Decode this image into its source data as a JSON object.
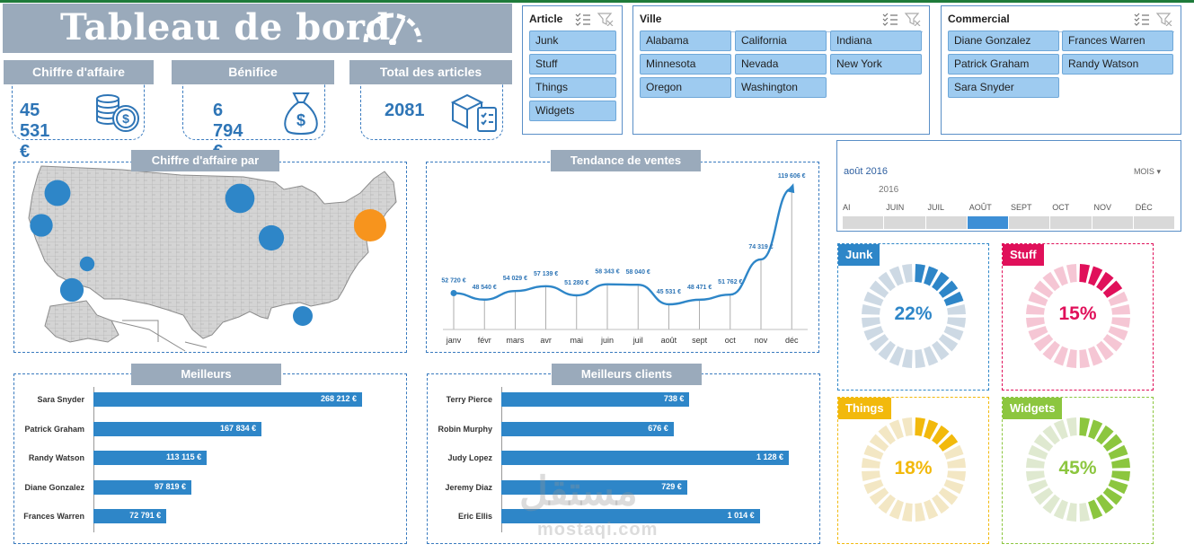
{
  "title": "Tableau de bord",
  "kpis": [
    {
      "label": "Chiffre d'affaire",
      "value": "45 531 €",
      "icon": "coins-dollar-icon"
    },
    {
      "label": "Bénifice",
      "value": "6 794 €",
      "icon": "money-bag-icon"
    },
    {
      "label": "Total des articles",
      "value": "2081",
      "icon": "box-checklist-icon"
    }
  ],
  "slicers": {
    "article": {
      "title": "Article",
      "items": [
        "Junk",
        "Stuff",
        "Things",
        "Widgets"
      ]
    },
    "ville": {
      "title": "Ville",
      "items": [
        "Alabama",
        "California",
        "Indiana",
        "Minnesota",
        "Nevada",
        "New York",
        "Oregon",
        "Washington"
      ]
    },
    "commercial": {
      "title": "Commercial",
      "items": [
        "Diane Gonzalez",
        "Frances Warren",
        "Patrick Graham",
        "Randy Watson",
        "Sara Snyder"
      ]
    }
  },
  "timeline": {
    "selection": "août 2016",
    "unit": "MOIS",
    "year": "2016",
    "months": [
      "AI",
      "JUIN",
      "JUIL",
      "AOÛT",
      "SEPT",
      "OCT",
      "NOV",
      "DÉC"
    ],
    "selected_index": 3
  },
  "map_panel": {
    "title": "Chiffre d'affaire par"
  },
  "trend_panel": {
    "title": "Tendance de ventes"
  },
  "best_panel": {
    "title": "Meilleurs"
  },
  "clients_panel": {
    "title": "Meilleurs clients"
  },
  "colors": {
    "accent": "#2e86c8",
    "header": "#9aaabb",
    "junk": "#2e86c8",
    "stuff": "#e0105a",
    "things": "#f2b90c",
    "widgets": "#8cc63f",
    "highlight": "#f7941d"
  },
  "donuts": [
    {
      "name": "Junk",
      "pct": "22%",
      "value": 0.22,
      "color": "#2e86c8",
      "light": "#cdd9e4"
    },
    {
      "name": "Stuff",
      "pct": "15%",
      "value": 0.15,
      "color": "#e0105a",
      "light": "#f5c6d4"
    },
    {
      "name": "Things",
      "pct": "18%",
      "value": 0.18,
      "color": "#f2b90c",
      "light": "#f3e7c4"
    },
    {
      "name": "Widgets",
      "pct": "45%",
      "value": 0.45,
      "color": "#8cc63f",
      "light": "#dfe9d0"
    }
  ],
  "watermark": {
    "main": "مستقل",
    "sub": "mostaqi.com"
  },
  "chart_data": [
    {
      "type": "line",
      "title": "Tendance de ventes",
      "categories": [
        "janv",
        "févr",
        "mars",
        "avr",
        "mai",
        "juin",
        "juil",
        "août",
        "sept",
        "oct",
        "nov",
        "déc"
      ],
      "values": [
        52720,
        48540,
        54029,
        57139,
        51280,
        58343,
        58040,
        45531,
        48471,
        51762,
        74319,
        119606
      ],
      "labels": [
        "52 720 €",
        "48 540 €",
        "54 029 €",
        "57 139 €",
        "51 280 €",
        "58 343 €",
        "58 040 €",
        "45 531 €",
        "48 471 €",
        "51 762 €",
        "74 319 €",
        "119 606 €"
      ],
      "ylim": [
        0,
        120000
      ]
    },
    {
      "type": "bar",
      "title": "Meilleurs",
      "categories": [
        "Sara Snyder",
        "Patrick Graham",
        "Randy Watson",
        "Diane Gonzalez",
        "Frances Warren"
      ],
      "values": [
        268212,
        167834,
        113115,
        97819,
        72791
      ],
      "labels": [
        "268 212 €",
        "167 834 €",
        "113 115 €",
        "97 819 €",
        "72 791 €"
      ]
    },
    {
      "type": "bar",
      "title": "Meilleurs clients",
      "categories": [
        "Terry Pierce",
        "Robin Murphy",
        "Judy Lopez",
        "Jeremy Diaz",
        "Eric Ellis"
      ],
      "values": [
        738,
        676,
        1128,
        729,
        1014
      ],
      "labels": [
        "738 €",
        "676 €",
        "1 128 €",
        "729 €",
        "1 014 €"
      ]
    },
    {
      "type": "scatter",
      "title": "Chiffre d'affaire par",
      "series": [
        {
          "name": "Washington",
          "size": 0.75,
          "highlight": false
        },
        {
          "name": "Oregon",
          "size": 0.62,
          "highlight": false
        },
        {
          "name": "California",
          "size": 0.65,
          "highlight": false
        },
        {
          "name": "Nevada",
          "size": 0.3,
          "highlight": false
        },
        {
          "name": "Minnesota",
          "size": 0.88,
          "highlight": false
        },
        {
          "name": "Indiana",
          "size": 0.72,
          "highlight": false
        },
        {
          "name": "New York",
          "size": 1.0,
          "highlight": true
        },
        {
          "name": "Alabama",
          "size": 0.5,
          "highlight": false
        }
      ]
    }
  ]
}
